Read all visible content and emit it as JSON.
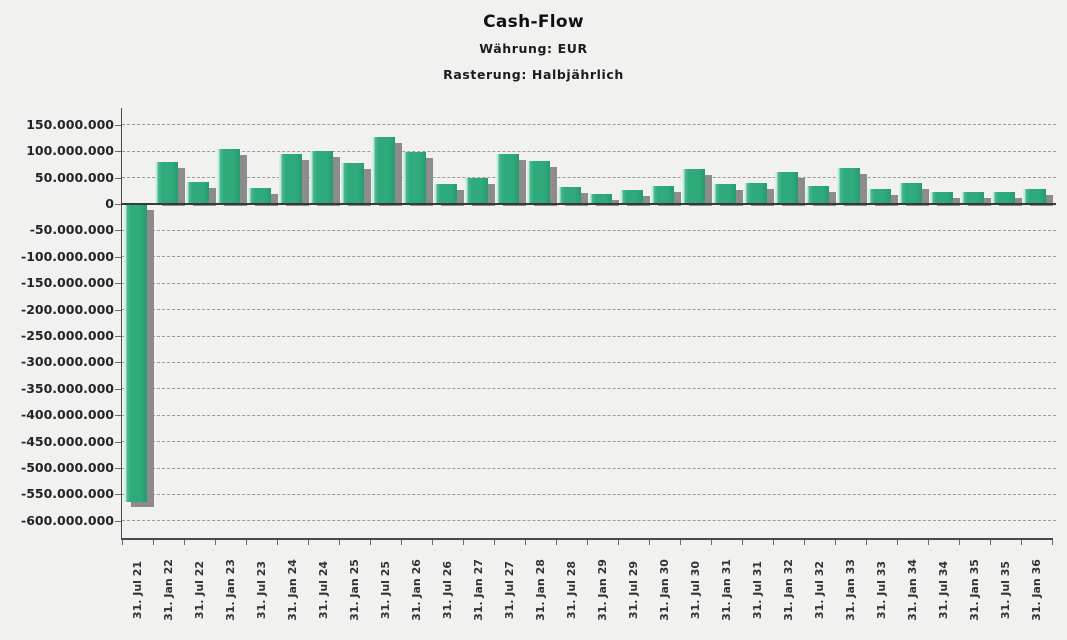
{
  "figure": {
    "title": "Cash-Flow",
    "subtitle_currency": "Währung: EUR",
    "subtitle_raster": "Rasterung: Halbjährlich"
  },
  "chart_data": {
    "type": "bar",
    "title": "Cash-Flow",
    "subtitles": [
      "Währung: EUR",
      "Rasterung: Halbjährlich"
    ],
    "currency": "EUR",
    "raster": "Halbjährlich",
    "legend": "none",
    "grid": "horizontal-dashed",
    "ylim": [
      -600000000,
      150000000
    ],
    "ytick_step": 50000000,
    "ytick_values": [
      150000000,
      100000000,
      50000000,
      0,
      -50000000,
      -100000000,
      -150000000,
      -200000000,
      -250000000,
      -300000000,
      -350000000,
      -400000000,
      -450000000,
      -500000000,
      -550000000,
      -600000000
    ],
    "ytick_labels": [
      "150.000.000",
      "100.000.000",
      "50.000.000",
      "0",
      "-50.000.000",
      "-100.000.000",
      "-150.000.000",
      "-200.000.000",
      "-250.000.000",
      "-300.000.000",
      "-350.000.000",
      "-400.000.000",
      "-450.000.000",
      "-500.000.000",
      "-550.000.000",
      "-600.000.000"
    ],
    "categories": [
      "31. Jul 21",
      "31. Jan 22",
      "31. Jul 22",
      "31. Jan 23",
      "31. Jul 23",
      "31. Jan 24",
      "31. Jul 24",
      "31. Jan 25",
      "31. Jul 25",
      "31. Jan 26",
      "31. Jul 26",
      "31. Jan 27",
      "31. Jul 27",
      "31. Jan 28",
      "31. Jul 28",
      "31. Jan 29",
      "31. Jul 29",
      "31. Jan 30",
      "31. Jul 30",
      "31. Jan 31",
      "31. Jul 31",
      "31. Jan 32",
      "31. Jul 32",
      "31. Jan 33",
      "31. Jul 33",
      "31. Jan 34",
      "31. Jul 34",
      "31. Jan 35",
      "31. Jul 35",
      "31. Jan 36"
    ],
    "values": [
      -565000000,
      80000000,
      42000000,
      104000000,
      30000000,
      95000000,
      100000000,
      77000000,
      127000000,
      99000000,
      38000000,
      50000000,
      94000000,
      82000000,
      32000000,
      18000000,
      26000000,
      35000000,
      66000000,
      38000000,
      40000000,
      60000000,
      34000000,
      68000000,
      28000000,
      40000000,
      22000000,
      22000000,
      22000000,
      28000000
    ],
    "bar_color": "#2fab7b",
    "bar_highlight_color": "#bfe8d6",
    "bar_shadow_color": "#8c8c8c",
    "background_color": "#f1f1ef",
    "gridline_color": "#9b9b9b",
    "zero_line_color": "#383838"
  }
}
